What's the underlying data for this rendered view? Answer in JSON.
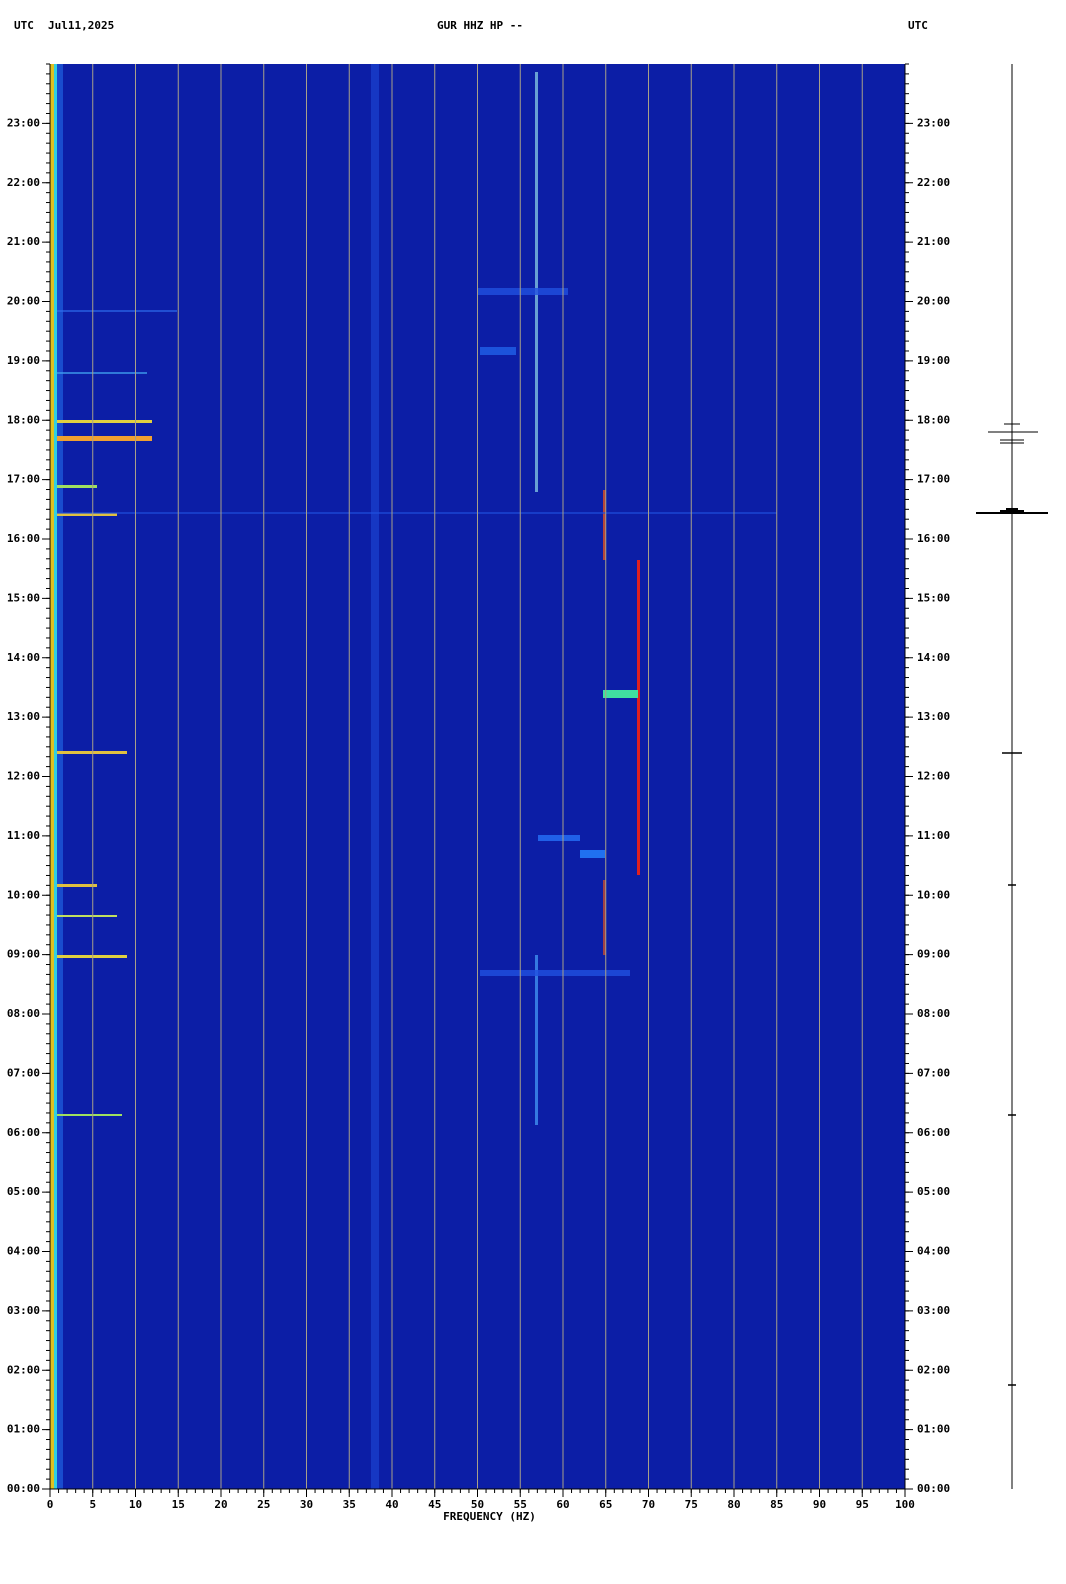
{
  "chart_data": {
    "type": "spectrogram",
    "title": "GUR HHZ HP --",
    "left_header": "UTC",
    "date": "Jul11,2025",
    "right_header": "UTC",
    "xlabel": "FREQUENCY (HZ)",
    "xlim": [
      0,
      100
    ],
    "xticks": [
      0,
      5,
      10,
      15,
      20,
      25,
      30,
      35,
      40,
      45,
      50,
      55,
      60,
      65,
      70,
      75,
      80,
      85,
      90,
      95,
      100
    ],
    "ylim": [
      0,
      24
    ],
    "yticks": [
      {
        "value": 0,
        "label": "00:00"
      },
      {
        "value": 1,
        "label": "01:00"
      },
      {
        "value": 2,
        "label": "02:00"
      },
      {
        "value": 3,
        "label": "03:00"
      },
      {
        "value": 4,
        "label": "04:00"
      },
      {
        "value": 5,
        "label": "05:00"
      },
      {
        "value": 6,
        "label": "06:00"
      },
      {
        "value": 7,
        "label": "07:00"
      },
      {
        "value": 8,
        "label": "08:00"
      },
      {
        "value": 9,
        "label": "09:00"
      },
      {
        "value": 10,
        "label": "10:00"
      },
      {
        "value": 11,
        "label": "11:00"
      },
      {
        "value": 12,
        "label": "12:00"
      },
      {
        "value": 13,
        "label": "13:00"
      },
      {
        "value": 14,
        "label": "14:00"
      },
      {
        "value": 15,
        "label": "15:00"
      },
      {
        "value": 16,
        "label": "16:00"
      },
      {
        "value": 17,
        "label": "17:00"
      },
      {
        "value": 18,
        "label": "18:00"
      },
      {
        "value": 19,
        "label": "19:00"
      },
      {
        "value": 20,
        "label": "20:00"
      },
      {
        "value": 21,
        "label": "21:00"
      },
      {
        "value": 22,
        "label": "22:00"
      },
      {
        "value": 23,
        "label": "23:00"
      }
    ],
    "grid": true,
    "grid_color": "#a8a088",
    "background": "#0c1ea6"
  }
}
